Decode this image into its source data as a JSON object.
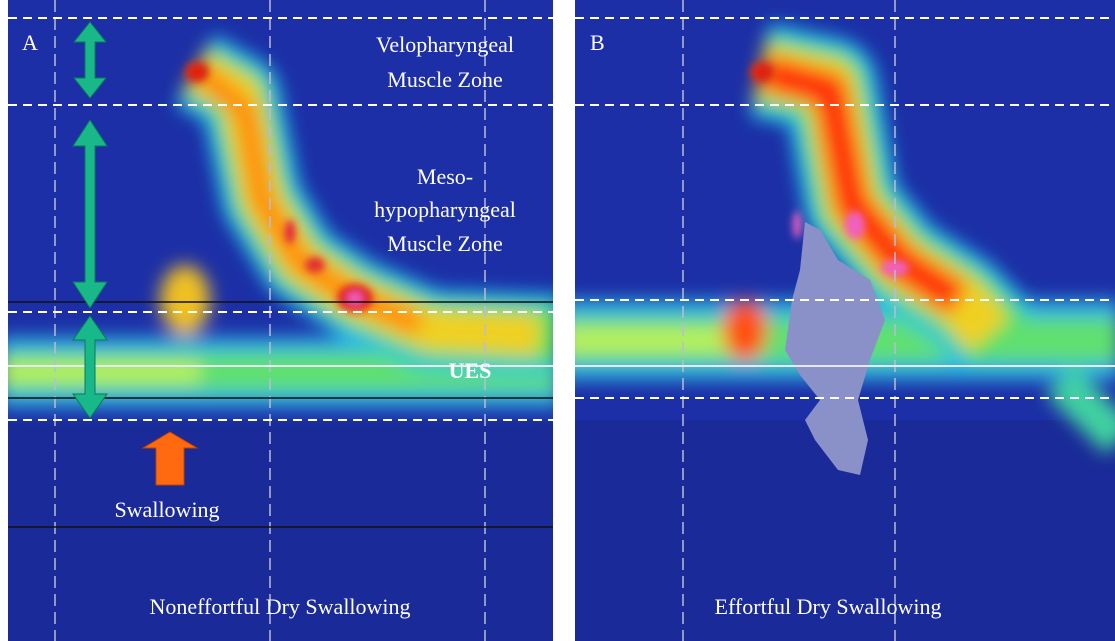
{
  "panels": [
    {
      "label": "A",
      "caption": "Noneffortful Dry Swallowing",
      "zones": [
        [
          "Velopharyngeal",
          "Muscle Zone"
        ],
        [
          "Meso-",
          "hypopharyngeal",
          "Muscle Zone"
        ],
        [
          "UES"
        ]
      ],
      "marker": "Swallowing"
    },
    {
      "label": "B",
      "caption": "Effortful Dry Swallowing"
    }
  ]
}
